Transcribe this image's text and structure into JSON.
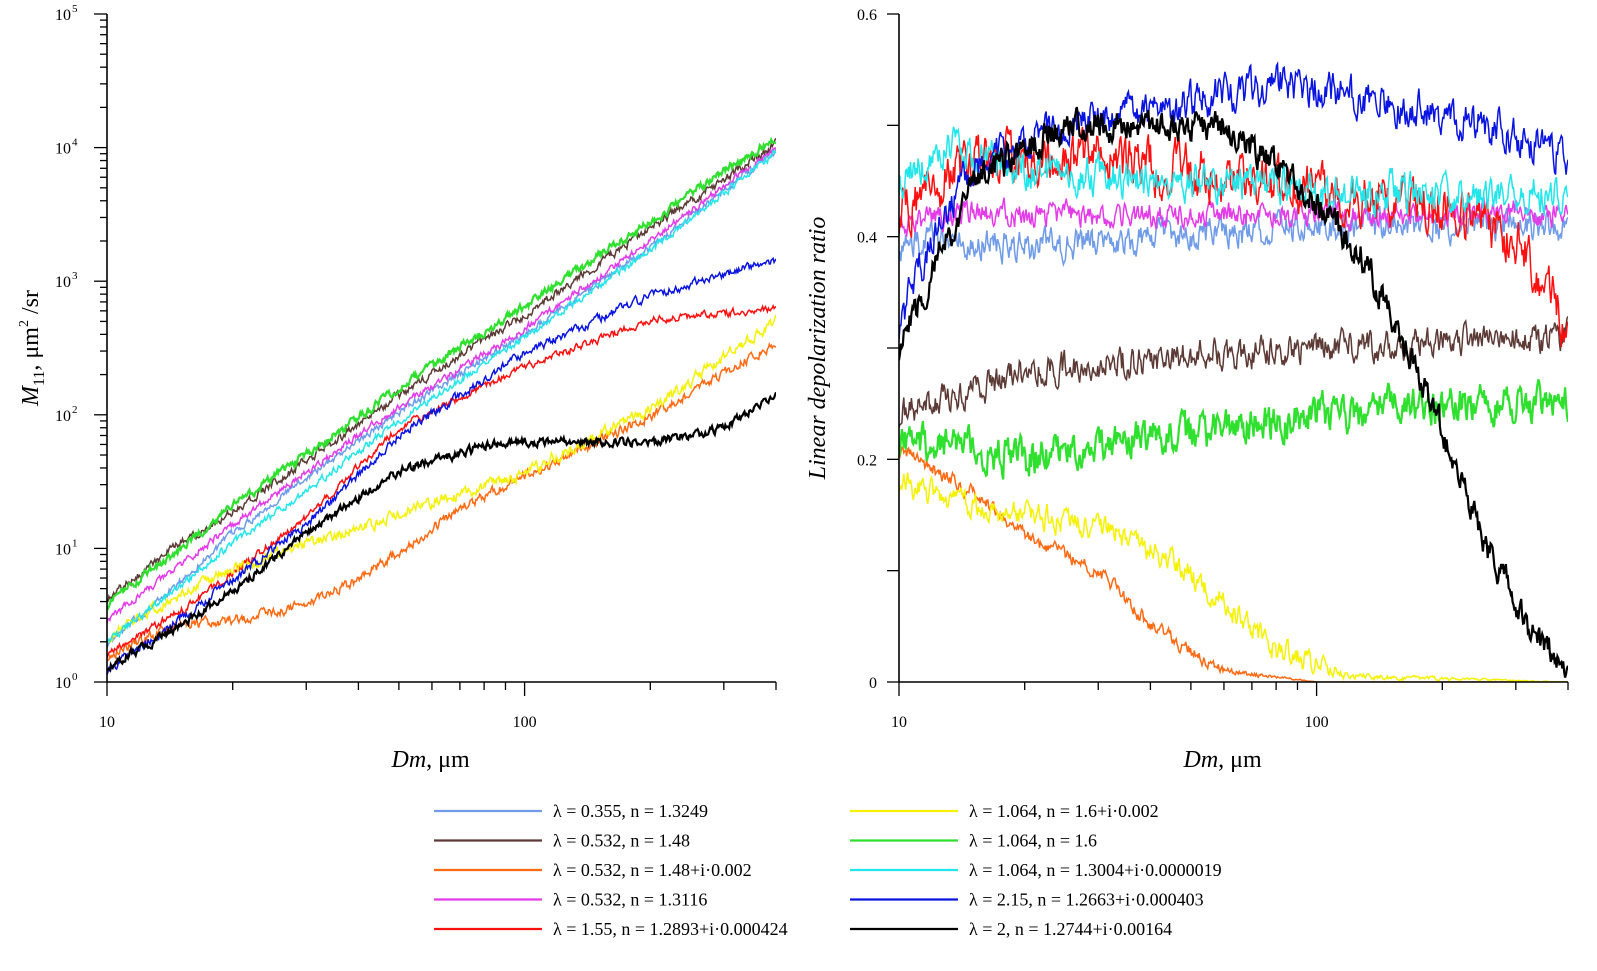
{
  "chart_data": [
    {
      "type": "line",
      "xscale": "log",
      "yscale": "log",
      "xlabel_italic": "Dm",
      "xlabel_rest": ", μm",
      "ylabel_italic": "M",
      "ylabel_sub": "11",
      "ylabel_rest": ", μm",
      "ylabel_sup": "2",
      "ylabel_rest2": " /sr",
      "xlim": [
        10,
        400
      ],
      "ylim": [
        1,
        100000
      ],
      "xticks": [
        {
          "v": 10,
          "label": "10"
        },
        {
          "v": 100,
          "label": "100"
        }
      ],
      "yticks": [
        {
          "v": 1,
          "base": "10",
          "exp": "0"
        },
        {
          "v": 10,
          "base": "10",
          "exp": "1"
        },
        {
          "v": 100,
          "base": "10",
          "exp": "2"
        },
        {
          "v": 1000,
          "base": "10",
          "exp": "3"
        },
        {
          "v": 10000,
          "base": "10",
          "exp": "4"
        },
        {
          "v": 100000,
          "base": "10",
          "exp": "5"
        }
      ],
      "series": [
        {
          "key": "s0355",
          "points": [
            [
              10,
              1.9
            ],
            [
              15,
              5.6
            ],
            [
              20,
              13
            ],
            [
              30,
              34
            ],
            [
              50,
              105
            ],
            [
              100,
              400
            ],
            [
              200,
              1800
            ],
            [
              400,
              9500
            ]
          ],
          "noise": 0.05
        },
        {
          "key": "s0532a",
          "points": [
            [
              10,
              4.2
            ],
            [
              15,
              11
            ],
            [
              20,
              19
            ],
            [
              30,
              45
            ],
            [
              50,
              140
            ],
            [
              100,
              560
            ],
            [
              200,
              2500
            ],
            [
              400,
              10500
            ]
          ],
          "noise": 0.06
        },
        {
          "key": "s0532b",
          "points": [
            [
              10,
              1.6
            ],
            [
              15,
              2.7
            ],
            [
              20,
              2.9
            ],
            [
              30,
              3.8
            ],
            [
              40,
              5.8
            ],
            [
              70,
              20
            ],
            [
              100,
              35
            ],
            [
              200,
              98
            ],
            [
              400,
              350
            ]
          ],
          "noise": 0.07
        },
        {
          "key": "s0532c",
          "points": [
            [
              10,
              2.9
            ],
            [
              15,
              7.5
            ],
            [
              20,
              15
            ],
            [
              30,
              37
            ],
            [
              50,
              115
            ],
            [
              100,
              440
            ],
            [
              200,
              2000
            ],
            [
              400,
              10000
            ]
          ],
          "noise": 0.05
        },
        {
          "key": "s155",
          "points": [
            [
              10,
              1.6
            ],
            [
              15,
              3.4
            ],
            [
              20,
              6.6
            ],
            [
              30,
              17
            ],
            [
              50,
              80
            ],
            [
              100,
              230
            ],
            [
              200,
              510
            ],
            [
              400,
              630
            ]
          ],
          "noise": 0.05
        },
        {
          "key": "s1064a",
          "points": [
            [
              10,
              2.2
            ],
            [
              15,
              4.5
            ],
            [
              20,
              7
            ],
            [
              30,
              11
            ],
            [
              40,
              14
            ],
            [
              60,
              22
            ],
            [
              100,
              37
            ],
            [
              200,
              110
            ],
            [
              400,
              500
            ]
          ],
          "noise": 0.08
        },
        {
          "key": "s1064b",
          "points": [
            [
              10,
              3.8
            ],
            [
              15,
              10
            ],
            [
              20,
              21
            ],
            [
              30,
              50
            ],
            [
              50,
              160
            ],
            [
              100,
              650
            ],
            [
              200,
              2800
            ],
            [
              400,
              12000
            ]
          ],
          "noise": 0.06
        },
        {
          "key": "s1064c",
          "points": [
            [
              10,
              2.0
            ],
            [
              15,
              5.2
            ],
            [
              20,
              11
            ],
            [
              30,
              27
            ],
            [
              50,
              90
            ],
            [
              100,
              380
            ],
            [
              200,
              1700
            ],
            [
              400,
              9200
            ]
          ],
          "noise": 0.05
        },
        {
          "key": "s215",
          "points": [
            [
              10,
              1.2
            ],
            [
              15,
              3.0
            ],
            [
              20,
              5.8
            ],
            [
              30,
              15
            ],
            [
              50,
              70
            ],
            [
              100,
              290
            ],
            [
              200,
              780
            ],
            [
              400,
              1450
            ]
          ],
          "noise": 0.06
        },
        {
          "key": "s2",
          "points": [
            [
              10,
              1.3
            ],
            [
              15,
              2.6
            ],
            [
              20,
              4.8
            ],
            [
              30,
              13
            ],
            [
              50,
              38
            ],
            [
              80,
              58
            ],
            [
              100,
              63
            ],
            [
              200,
              62
            ],
            [
              300,
              80
            ],
            [
              400,
              138
            ]
          ],
          "noise": 0.06
        }
      ]
    },
    {
      "type": "line",
      "xscale": "log",
      "yscale": "linear",
      "xlabel_italic": "Dm",
      "xlabel_rest": ", μm",
      "ylabel": "Linear depolarization ratio",
      "xlim": [
        10,
        400
      ],
      "ylim": [
        0,
        0.6
      ],
      "xticks": [
        {
          "v": 10,
          "label": "10"
        },
        {
          "v": 100,
          "label": "100"
        }
      ],
      "yticks": [
        {
          "v": 0,
          "label": "0"
        },
        {
          "v": 0.2,
          "label": "0.2"
        },
        {
          "v": 0.4,
          "label": "0.4"
        },
        {
          "v": 0.6,
          "label": "0.6"
        }
      ],
      "series": [
        {
          "key": "s0355",
          "points": [
            [
              10,
              0.39
            ],
            [
              13,
              0.4
            ],
            [
              20,
              0.39
            ],
            [
              40,
              0.4
            ],
            [
              100,
              0.41
            ],
            [
              400,
              0.41
            ]
          ],
          "noise": 0.025
        },
        {
          "key": "s0532a",
          "points": [
            [
              10,
              0.24
            ],
            [
              15,
              0.26
            ],
            [
              20,
              0.28
            ],
            [
              40,
              0.29
            ],
            [
              100,
              0.3
            ],
            [
              400,
              0.31
            ]
          ],
          "noise": 0.025
        },
        {
          "key": "s0532b",
          "points": [
            [
              10,
              0.21
            ],
            [
              15,
              0.17
            ],
            [
              20,
              0.13
            ],
            [
              30,
              0.1
            ],
            [
              40,
              0.05
            ],
            [
              60,
              0.01
            ],
            [
              100,
              0.0
            ],
            [
              400,
              0.0
            ]
          ],
          "noise": 0.012
        },
        {
          "key": "s0532c",
          "points": [
            [
              10,
              0.41
            ],
            [
              15,
              0.42
            ],
            [
              30,
              0.42
            ],
            [
              60,
              0.42
            ],
            [
              100,
              0.42
            ],
            [
              400,
              0.42
            ]
          ],
          "noise": 0.02
        },
        {
          "key": "s155",
          "points": [
            [
              10,
              0.42
            ],
            [
              15,
              0.47
            ],
            [
              25,
              0.47
            ],
            [
              50,
              0.46
            ],
            [
              100,
              0.44
            ],
            [
              200,
              0.43
            ],
            [
              300,
              0.4
            ],
            [
              400,
              0.32
            ]
          ],
          "noise": 0.04
        },
        {
          "key": "s1064a",
          "points": [
            [
              10,
              0.18
            ],
            [
              15,
              0.16
            ],
            [
              20,
              0.15
            ],
            [
              30,
              0.14
            ],
            [
              45,
              0.11
            ],
            [
              60,
              0.07
            ],
            [
              80,
              0.03
            ],
            [
              120,
              0.005
            ],
            [
              400,
              0.0
            ]
          ],
          "noise": 0.02
        },
        {
          "key": "s1064b",
          "points": [
            [
              10,
              0.22
            ],
            [
              20,
              0.2
            ],
            [
              40,
              0.22
            ],
            [
              70,
              0.23
            ],
            [
              100,
              0.24
            ],
            [
              200,
              0.25
            ],
            [
              400,
              0.25
            ]
          ],
          "noise": 0.03
        },
        {
          "key": "s1064c",
          "points": [
            [
              10,
              0.45
            ],
            [
              13,
              0.48
            ],
            [
              20,
              0.46
            ],
            [
              40,
              0.45
            ],
            [
              100,
              0.44
            ],
            [
              400,
              0.44
            ]
          ],
          "noise": 0.03
        },
        {
          "key": "s215",
          "points": [
            [
              10,
              0.32
            ],
            [
              12,
              0.4
            ],
            [
              15,
              0.46
            ],
            [
              25,
              0.5
            ],
            [
              50,
              0.52
            ],
            [
              80,
              0.54
            ],
            [
              150,
              0.52
            ],
            [
              250,
              0.5
            ],
            [
              400,
              0.47
            ]
          ],
          "noise": 0.03
        },
        {
          "key": "s2",
          "points": [
            [
              10,
              0.3
            ],
            [
              15,
              0.45
            ],
            [
              25,
              0.5
            ],
            [
              40,
              0.5
            ],
            [
              60,
              0.5
            ],
            [
              90,
              0.45
            ],
            [
              130,
              0.38
            ],
            [
              180,
              0.27
            ],
            [
              250,
              0.13
            ],
            [
              320,
              0.05
            ],
            [
              400,
              0.01
            ]
          ],
          "noise": 0.025
        }
      ]
    }
  ],
  "legend": [
    {
      "key": "s0355",
      "label": "λ = 0.355, n = 1.3249",
      "color": "#6f9be8"
    },
    {
      "key": "s0532a",
      "label": "λ = 0.532, n = 1.48",
      "color": "#5c3a35"
    },
    {
      "key": "s0532b",
      "label": "λ = 0.532, n = 1.48+i·0.002",
      "color": "#ff6a13"
    },
    {
      "key": "s0532c",
      "label": "λ = 0.532, n = 1.3116",
      "color": "#e43be8"
    },
    {
      "key": "s155",
      "label": "λ = 1.55, n = 1.2893+i·0.000424",
      "color": "#ff1010"
    },
    {
      "key": "s1064a",
      "label": "λ = 1.064, n = 1.6+i·0.002",
      "color": "#f5f207"
    },
    {
      "key": "s1064b",
      "label": "λ = 1.064, n = 1.6",
      "color": "#2fe02f"
    },
    {
      "key": "s1064c",
      "label": "λ = 1.064, n = 1.3004+i·0.0000019",
      "color": "#23e6ea"
    },
    {
      "key": "s215",
      "label": "λ = 2.15, n = 1.2663+i·0.000403",
      "color": "#0a14e0"
    },
    {
      "key": "s2",
      "label": "λ = 2, n = 1.2744+i·0.00164",
      "color": "#000000"
    }
  ]
}
